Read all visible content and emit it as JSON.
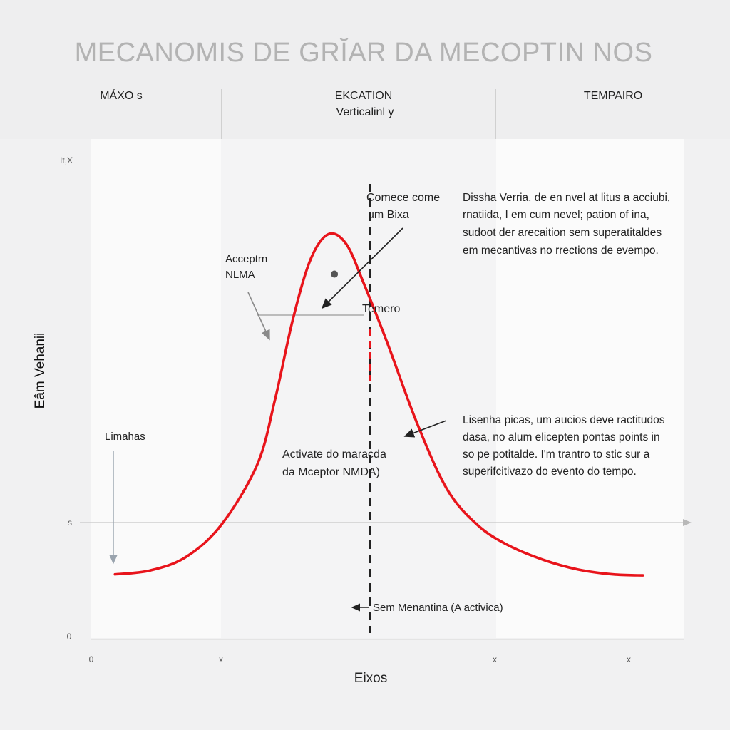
{
  "chart_data": {
    "type": "line",
    "title": "MECANOMIS DE GRĬAR DA MECOPTIN NOS",
    "xlabel": "Eixos",
    "ylabel": "Eâm Vehanii",
    "columns": [
      {
        "label_lines": [
          "MÁXO s"
        ]
      },
      {
        "label_lines": [
          "EKCATION",
          "Verticalinl y"
        ]
      },
      {
        "label_lines": [
          "TEMPAIRO"
        ]
      }
    ],
    "y_ticks": [
      "0",
      "s",
      "It,X"
    ],
    "x_ticks": [
      "0",
      "x",
      "x",
      "x"
    ],
    "xlim": [
      0,
      10
    ],
    "ylim": [
      0,
      10
    ],
    "series": [
      {
        "color": "#e8141b",
        "points": [
          [
            0.4,
            1.3
          ],
          [
            1.0,
            1.38
          ],
          [
            1.6,
            1.65
          ],
          [
            2.2,
            2.3
          ],
          [
            2.8,
            3.5
          ],
          [
            3.1,
            4.8
          ],
          [
            3.4,
            6.4
          ],
          [
            3.7,
            7.6
          ],
          [
            4.0,
            8.1
          ],
          [
            4.3,
            7.9
          ],
          [
            4.6,
            7.1
          ],
          [
            5.0,
            5.9
          ],
          [
            5.5,
            4.3
          ],
          [
            6.0,
            3.0
          ],
          [
            6.5,
            2.3
          ],
          [
            7.0,
            1.9
          ],
          [
            7.6,
            1.6
          ],
          [
            8.2,
            1.4
          ],
          [
            8.8,
            1.3
          ],
          [
            9.3,
            1.28
          ]
        ]
      }
    ],
    "marker_x": 4.7,
    "peak_dot": [
      4.1,
      7.3
    ],
    "annotations": {
      "acceptor": [
        "Acceptrn",
        "NLMA"
      ],
      "comece": [
        "Comece come",
        "um Bixa"
      ],
      "temero": "Temero",
      "limahas": "Limahas",
      "activate": [
        "Activate do maracda",
        "da Mceptor NMDA)"
      ],
      "sem": "Sem Menantina (A activica)",
      "note_top": [
        "Dissha Verria, de en nvel at litus a acciubi,",
        "rnatiida, I em cum nevel; pation of ina,",
        "sudoot der arecaition sem superatitaldes",
        "em mecantivas no rrections de evempo."
      ],
      "note_bottom": [
        "Lisenha picas, um aucios deve ractitudos",
        "dasa, no alum elicepten pontas points in",
        "so pe potitalde. I'm trantro to stic sur a",
        "superifcitivazo do evento do tempo."
      ]
    },
    "colors": {
      "curve": "#e8141b",
      "marker": "#222222",
      "grid": "#c8c8c8",
      "title": "#b3b3b3"
    }
  }
}
